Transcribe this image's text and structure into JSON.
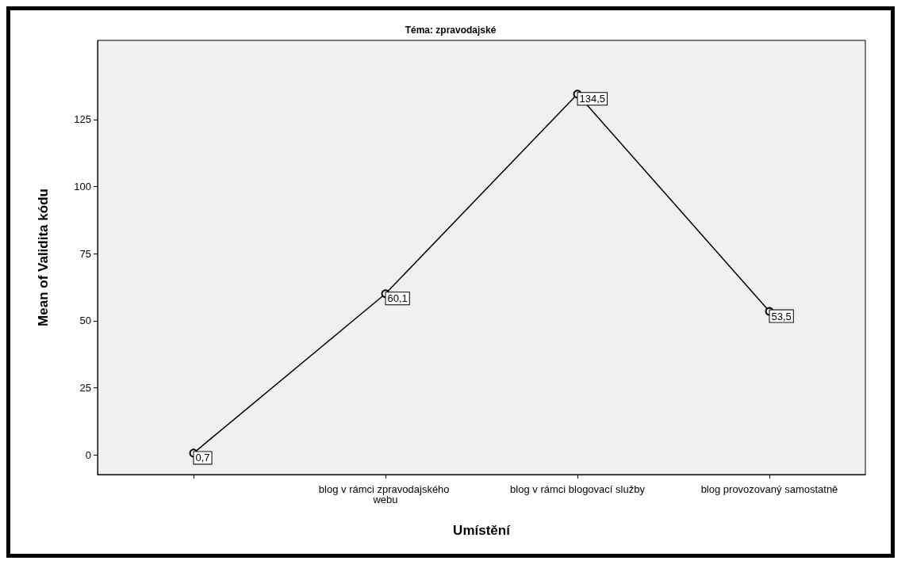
{
  "chart_data": {
    "type": "line",
    "title": "Téma: zpravodajské",
    "xlabel": "Umístění",
    "ylabel": "Mean of Validita kódu",
    "categories": [
      null,
      "blog v rámci zpravodajského webu",
      "blog v rámci blogovací služby",
      "blog provozovaný samostatně"
    ],
    "values": [
      0.7,
      60.1,
      134.5,
      53.5
    ],
    "value_labels": [
      "0,7",
      "60,1",
      "134,5",
      "53,5"
    ],
    "color": "#000000",
    "ylim": [
      -7.3,
      154.5
    ],
    "yticks": [
      0,
      25,
      50,
      75,
      100,
      125
    ],
    "grid": false,
    "marker": "circle",
    "line_style": "solid"
  }
}
